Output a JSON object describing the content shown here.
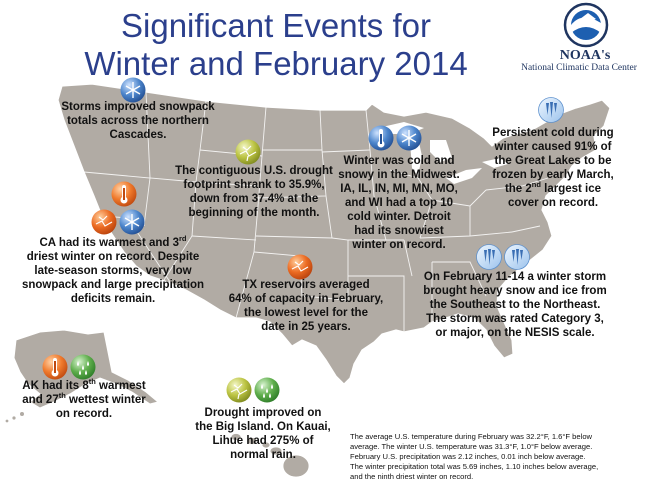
{
  "title": {
    "line1": "Significant Events for",
    "line2": "Winter and February 2014"
  },
  "logo": {
    "emblem_text": "NOAA",
    "name": "NOAA's",
    "subtitle": "National Climatic Data Center"
  },
  "colors": {
    "title": "#2b3f8c",
    "land": "#b1aba4",
    "borders": "#ffffff",
    "warm_icon": "#e8651f",
    "cold_icon": "#3a6fb4",
    "drought_icon": "#b6bf3a",
    "wet_icon": "#5aa548"
  },
  "annotations": {
    "cascades": {
      "lines": [
        "Storms improved snowpack",
        "totals across the northern",
        "Cascades."
      ],
      "icons": [
        "snow-icon"
      ]
    },
    "drought": {
      "lines": [
        "The contiguous U.S. drought",
        "footprint shrank to 35.9%,",
        "down from 37.4% at the",
        "beginning of the month."
      ],
      "icons": [
        "drought-icon"
      ]
    },
    "midwest": {
      "lines": [
        "Winter was cold and",
        "snowy in the Midwest.",
        "IA, IL, IN, MI, MN, MO,",
        "and WI had a top 10",
        "cold winter. Detroit",
        "had its snowiest",
        "winter on record."
      ],
      "icons": [
        "cold-icon",
        "snow-icon"
      ]
    },
    "great_lakes": {
      "line1": "Persistent cold during",
      "line2": "winter caused 91% of",
      "line3": "the Great Lakes to be",
      "line4": "frozen by early March,",
      "line5_a": "the 2",
      "line5_sup": "nd",
      "line5_b": " largest ice",
      "line6": "cover on record.",
      "icons": [
        "ice-icon"
      ]
    },
    "california": {
      "line1_a": "CA had its warmest and 3",
      "line1_sup": "rd",
      "line2": "driest winter on record. Despite",
      "line3": "late-season  storms, very low",
      "line4": "snowpack and large precipitation",
      "line5": "deficits remain.",
      "icons": [
        "warm-icon",
        "dry-icon",
        "snow-icon"
      ]
    },
    "texas": {
      "lines": [
        "TX reservoirs averaged",
        "64% of capacity in February,",
        "the lowest level for the",
        "date in 25 years."
      ],
      "icons": [
        "dry-icon"
      ]
    },
    "storm": {
      "lines": [
        "On February 11-14 a winter storm",
        "brought heavy snow and ice from",
        "the Southeast to the Northeast.",
        "The storm was rated Category 3,",
        "or major, on the NESIS scale."
      ],
      "icons": [
        "ice-icon",
        "ice-icon"
      ]
    },
    "alaska": {
      "line1_a": "AK had its 8",
      "line1_sup": "th",
      "line1_b": " warmest",
      "line2_a": "and 27",
      "line2_sup": "th",
      "line2_b": " wettest winter",
      "line3": "on record.",
      "icons": [
        "warm-icon",
        "wet-icon"
      ]
    },
    "hawaii": {
      "lines": [
        "Drought improved on",
        "the Big Island. On Kauai,",
        "Lihue had 275% of",
        "normal rain."
      ],
      "icons": [
        "drought-icon",
        "wet-icon"
      ]
    }
  },
  "stats": [
    "The average U.S. temperature during February was 32.2°F, 1.6°F below",
    "average. The winter U.S. temperature was 31.3°F, 1.0°F below average.",
    "February U.S. precipitation was 2.12 inches, 0.01 inch below average.",
    "The winter precipitation total was 5.69 inches, 1.10 inches below average,",
    "and the ninth driest winter on record."
  ]
}
